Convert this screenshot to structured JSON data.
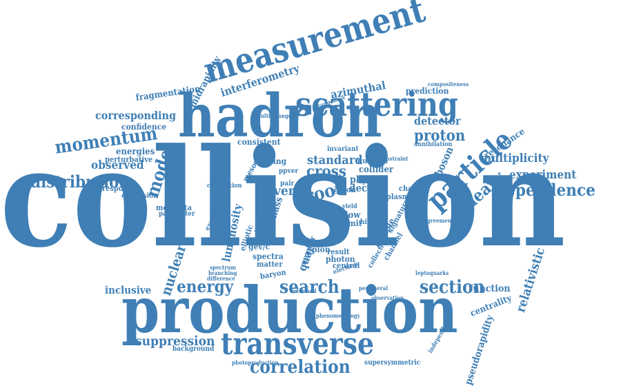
{
  "theme": {
    "word_color": "#3f7fb5",
    "background": "#ffffff"
  },
  "words": [
    {
      "text": "collision"
    },
    {
      "text": "production"
    },
    {
      "text": "hadron"
    },
    {
      "text": "measurement"
    },
    {
      "text": "scattering"
    },
    {
      "text": "transverse"
    },
    {
      "text": "particle"
    },
    {
      "text": "momentum"
    },
    {
      "text": "distribution"
    },
    {
      "text": "dependence"
    },
    {
      "text": "search"
    },
    {
      "text": "section"
    },
    {
      "text": "correlation"
    },
    {
      "text": "energy"
    },
    {
      "text": "model"
    },
    {
      "text": "proton"
    },
    {
      "text": "heavy"
    },
    {
      "text": "cross"
    },
    {
      "text": "root"
    },
    {
      "text": "standard"
    },
    {
      "text": "event"
    },
    {
      "text": "multiplicity"
    },
    {
      "text": "experiment"
    },
    {
      "text": "nuclear"
    },
    {
      "text": "suppression"
    },
    {
      "text": "corresponding"
    },
    {
      "text": "observed"
    },
    {
      "text": "detector"
    },
    {
      "text": "relativistic"
    },
    {
      "text": "pseudorapidity"
    },
    {
      "text": "luminosity"
    },
    {
      "text": "quark"
    },
    {
      "text": "azimuthal"
    },
    {
      "text": "interferometry"
    },
    {
      "text": "midrapidity"
    },
    {
      "text": "fragmentation"
    },
    {
      "text": "confidence"
    },
    {
      "text": "energies"
    },
    {
      "text": "perturbative"
    },
    {
      "text": "inclusive"
    },
    {
      "text": "function"
    },
    {
      "text": "centrality"
    },
    {
      "text": "resonance"
    },
    {
      "text": "prediction"
    },
    {
      "text": "boson"
    },
    {
      "text": "decay"
    },
    {
      "text": "collider"
    },
    {
      "text": "physic"
    },
    {
      "text": "charged"
    },
    {
      "text": "plasmon"
    },
    {
      "text": "data"
    },
    {
      "text": "flow"
    },
    {
      "text": "limit"
    },
    {
      "text": "photon"
    },
    {
      "text": "pion"
    },
    {
      "text": "result"
    },
    {
      "text": "central"
    },
    {
      "text": "spectra"
    },
    {
      "text": "matter"
    },
    {
      "text": "baryon"
    },
    {
      "text": "gev/c"
    },
    {
      "text": "mass"
    },
    {
      "text": "consistent"
    },
    {
      "text": "missing"
    },
    {
      "text": "nucleon"
    },
    {
      "text": "gluon"
    },
    {
      "text": "meson"
    },
    {
      "text": "invariant"
    },
    {
      "text": "annihilation"
    },
    {
      "text": "compositeness"
    },
    {
      "text": "strangeness"
    },
    {
      "text": "multistrange"
    },
    {
      "text": "correspond"
    },
    {
      "text": "dimension"
    },
    {
      "text": "momenta"
    },
    {
      "text": "parameter"
    },
    {
      "text": "background"
    },
    {
      "text": "photoproduction"
    },
    {
      "text": "supersymmetric"
    },
    {
      "text": "independent"
    },
    {
      "text": "observation"
    },
    {
      "text": "leptoquarks"
    },
    {
      "text": "agreement"
    },
    {
      "text": "number"
    },
    {
      "text": "yield"
    },
    {
      "text": "higgs"
    },
    {
      "text": "electron"
    },
    {
      "text": "sample"
    },
    {
      "text": "signature"
    },
    {
      "text": "channel"
    },
    {
      "text": "collective"
    },
    {
      "text": "range"
    },
    {
      "text": "elliptic"
    },
    {
      "text": "expectation"
    },
    {
      "text": "calculation"
    },
    {
      "text": "spectrum"
    },
    {
      "text": "branching"
    },
    {
      "text": "difference"
    },
    {
      "text": "pair"
    },
    {
      "text": "djet"
    },
    {
      "text": "ppver"
    },
    {
      "text": "constraint"
    },
    {
      "text": "phenomenology"
    },
    {
      "text": "deformed"
    },
    {
      "text": "peripheral"
    }
  ]
}
